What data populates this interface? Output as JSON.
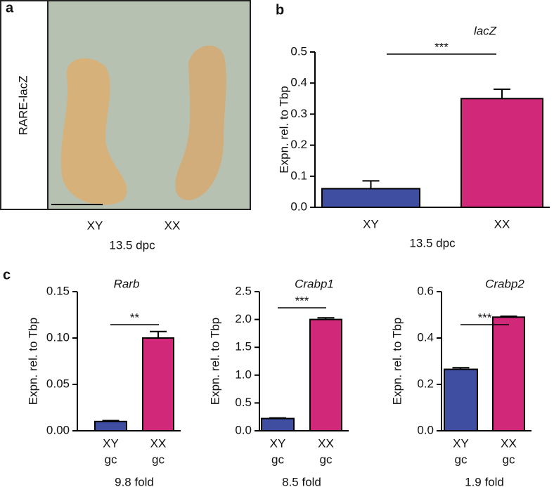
{
  "panel_a": {
    "letter": "a",
    "label": "RARE-lacZ",
    "categories": [
      "XY",
      "XX"
    ],
    "xlabel": "13.5 dpc"
  },
  "chart_data": [
    {
      "type": "bar",
      "panel": "b",
      "title": "lacZ",
      "ylabel": "Expn. rel. to Tbp",
      "xlabel": "13.5 dpc",
      "categories": [
        "XY",
        "XX"
      ],
      "values": [
        0.06,
        0.35
      ],
      "errors": [
        0.025,
        0.03
      ],
      "colors": [
        "#3f4ea1",
        "#d2287a"
      ],
      "ylim": [
        0,
        0.5
      ],
      "yticks": [
        {
          "value": 0,
          "label": "0.0"
        },
        0.1,
        0.2,
        0.3,
        0.4,
        0.5
      ],
      "significance": "***"
    },
    {
      "type": "bar",
      "panel": "c",
      "title": "Rarb",
      "ylabel": "Expn. rel. to Tbp",
      "xlabel": "9.8 fold",
      "categories": [
        "XY",
        "XX"
      ],
      "category_sublabels": [
        "gc",
        "gc"
      ],
      "values": [
        0.01,
        0.1
      ],
      "errors": [
        0.001,
        0.007
      ],
      "colors": [
        "#3f4ea1",
        "#d2287a"
      ],
      "ylim": [
        0,
        0.15
      ],
      "yticks": [
        {
          "value": 0,
          "label": "0.00"
        },
        {
          "value": 0.05,
          "label": "0.05"
        },
        {
          "value": 0.1,
          "label": "0.10"
        },
        {
          "value": 0.15,
          "label": "0.15"
        }
      ],
      "significance": "**"
    },
    {
      "type": "bar",
      "title": "Crabp1",
      "ylabel": "Expn. rel. to Tbp",
      "xlabel": "8.5 fold",
      "categories": [
        "XY",
        "XX"
      ],
      "category_sublabels": [
        "gc",
        "gc"
      ],
      "values": [
        0.22,
        2.0
      ],
      "errors": [
        0.01,
        0.03
      ],
      "colors": [
        "#3f4ea1",
        "#d2287a"
      ],
      "ylim": [
        0,
        2.5
      ],
      "yticks": [
        {
          "value": 0,
          "label": "0.0"
        },
        0.5,
        {
          "value": 1,
          "label": "1.0"
        },
        1.5,
        {
          "value": 2,
          "label": "2.0"
        },
        2.5
      ],
      "significance": "***"
    },
    {
      "type": "bar",
      "title": "Crabp2",
      "ylabel": "Expn. rel. to Tbp",
      "xlabel": "1.9 fold",
      "categories": [
        "XY",
        "XX"
      ],
      "category_sublabels": [
        "gc",
        "gc"
      ],
      "values": [
        0.265,
        0.49
      ],
      "errors": [
        0.007,
        0.004
      ],
      "colors": [
        "#3f4ea1",
        "#d2287a"
      ],
      "ylim": [
        0,
        0.6
      ],
      "yticks": [
        {
          "value": 0,
          "label": "0.0"
        },
        0.2,
        0.4,
        0.6
      ],
      "significance": "***"
    }
  ]
}
